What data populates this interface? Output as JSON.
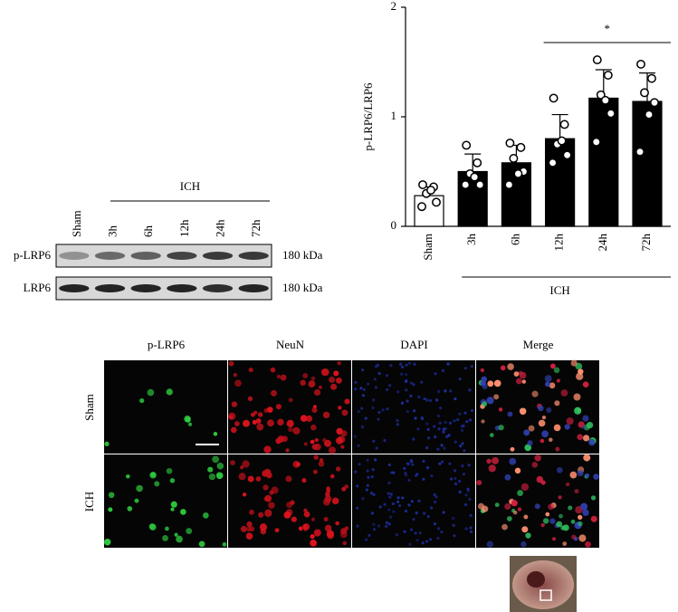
{
  "chart_data": {
    "type": "bar",
    "categories": [
      "Sham",
      "3h",
      "6h",
      "12h",
      "24h",
      "72h"
    ],
    "values": [
      0.28,
      0.5,
      0.58,
      0.8,
      1.17,
      1.14
    ],
    "errors": [
      0.08,
      0.16,
      0.16,
      0.22,
      0.26,
      0.26
    ],
    "points": [
      [
        0.38,
        0.36,
        0.3,
        0.22,
        0.18,
        0.33
      ],
      [
        0.74,
        0.58,
        0.48,
        0.38,
        0.38,
        0.45
      ],
      [
        0.76,
        0.72,
        0.62,
        0.5,
        0.38,
        0.48
      ],
      [
        1.17,
        0.93,
        0.75,
        0.65,
        0.58,
        0.78
      ],
      [
        1.52,
        1.38,
        1.2,
        1.03,
        0.77,
        1.15
      ],
      [
        1.48,
        1.35,
        1.22,
        1.13,
        0.68,
        1.02
      ]
    ],
    "colors": [
      "#ffffff",
      "#000000",
      "#000000",
      "#000000",
      "#000000",
      "#000000"
    ],
    "ylabel": "p-LRP6/LRP6",
    "ylim": [
      0,
      2
    ],
    "yticks": [
      0,
      1,
      2
    ],
    "group_label": "ICH",
    "annotation": "*"
  },
  "blot": {
    "group_label": "ICH",
    "lanes": [
      "Sham",
      "3h",
      "6h",
      "12h",
      "24h",
      "72h"
    ],
    "rows": [
      {
        "name": "p-LRP6",
        "size": "180 kDa"
      },
      {
        "name": "LRP6",
        "size": "180 kDa"
      }
    ]
  },
  "microscopy": {
    "columns": [
      "p-LRP6",
      "NeuN",
      "DAPI",
      "Merge"
    ],
    "rows": [
      "Sham",
      "ICH"
    ]
  }
}
